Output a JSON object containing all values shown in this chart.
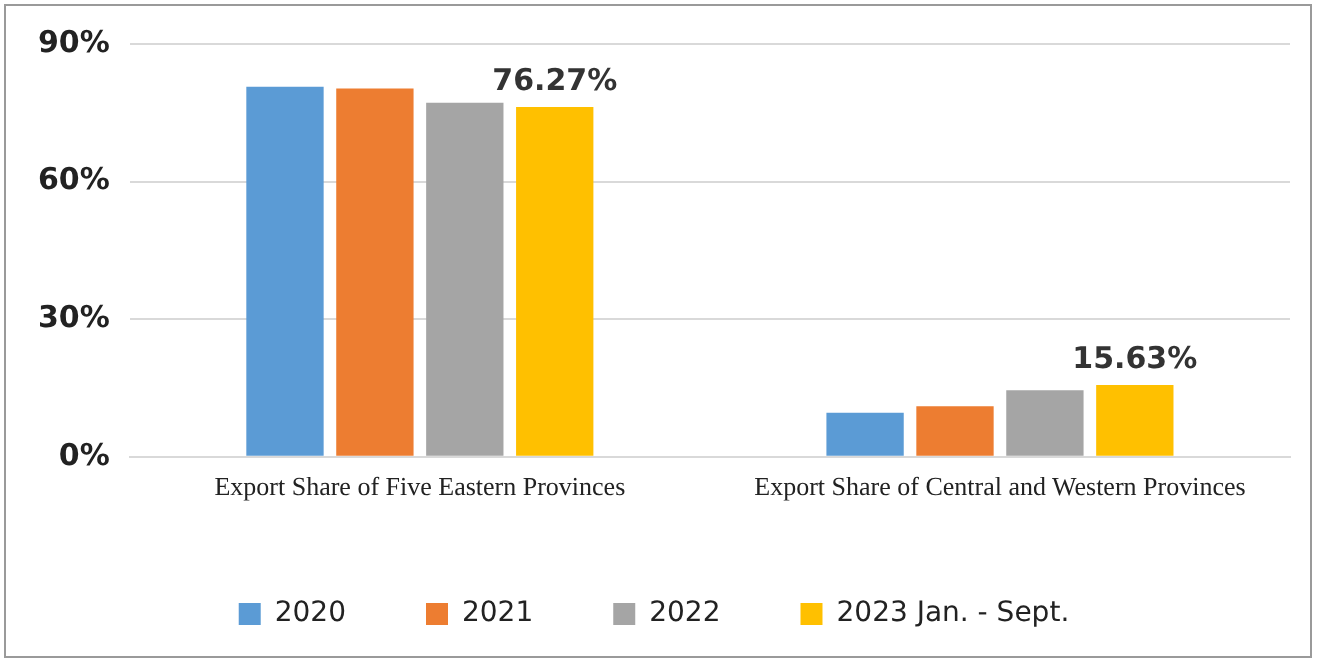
{
  "chart_data": {
    "type": "bar",
    "categories": [
      "Export Share of Five Eastern Provinces",
      "Export Share of Central and Western Provinces"
    ],
    "series": [
      {
        "name": "2020",
        "color": "#5b9bd5",
        "values": [
          80.7,
          9.6
        ]
      },
      {
        "name": "2021",
        "color": "#ed7d31",
        "values": [
          80.3,
          11
        ]
      },
      {
        "name": "2022",
        "color": "#a5a5a5",
        "values": [
          77.2,
          14.5
        ]
      },
      {
        "name": "2023 Jan. - Sept.",
        "color": "#ffc000",
        "values": [
          76.27,
          15.63
        ],
        "value_labels": [
          "76.27%",
          "15.63%"
        ]
      }
    ],
    "ylim": [
      0,
      90
    ],
    "yticks": [
      {
        "value": 0,
        "label": "0%"
      },
      {
        "value": 30,
        "label": "30%"
      },
      {
        "value": 60,
        "label": "60%"
      },
      {
        "value": 90,
        "label": "90%"
      }
    ],
    "grid": "y",
    "legend": "bottom"
  }
}
